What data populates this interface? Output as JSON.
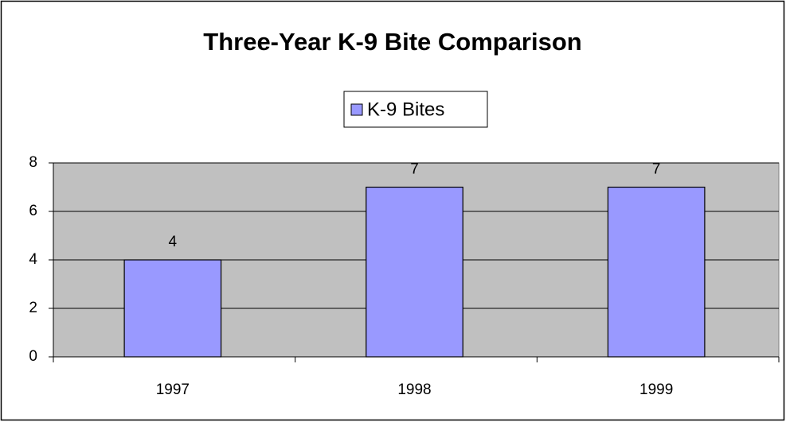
{
  "chart_data": {
    "type": "bar",
    "title": "Three-Year K-9 Bite Comparison",
    "categories": [
      "1997",
      "1998",
      "1999"
    ],
    "series": [
      {
        "name": "K-9 Bites",
        "color": "#9999ff",
        "values": [
          4,
          7,
          7
        ]
      }
    ],
    "ylim": [
      0,
      8
    ],
    "yticks": [
      0,
      2,
      4,
      6,
      8
    ],
    "grid": true,
    "legend": "top",
    "data_labels": true,
    "plot_background": "#c0c0c0"
  }
}
